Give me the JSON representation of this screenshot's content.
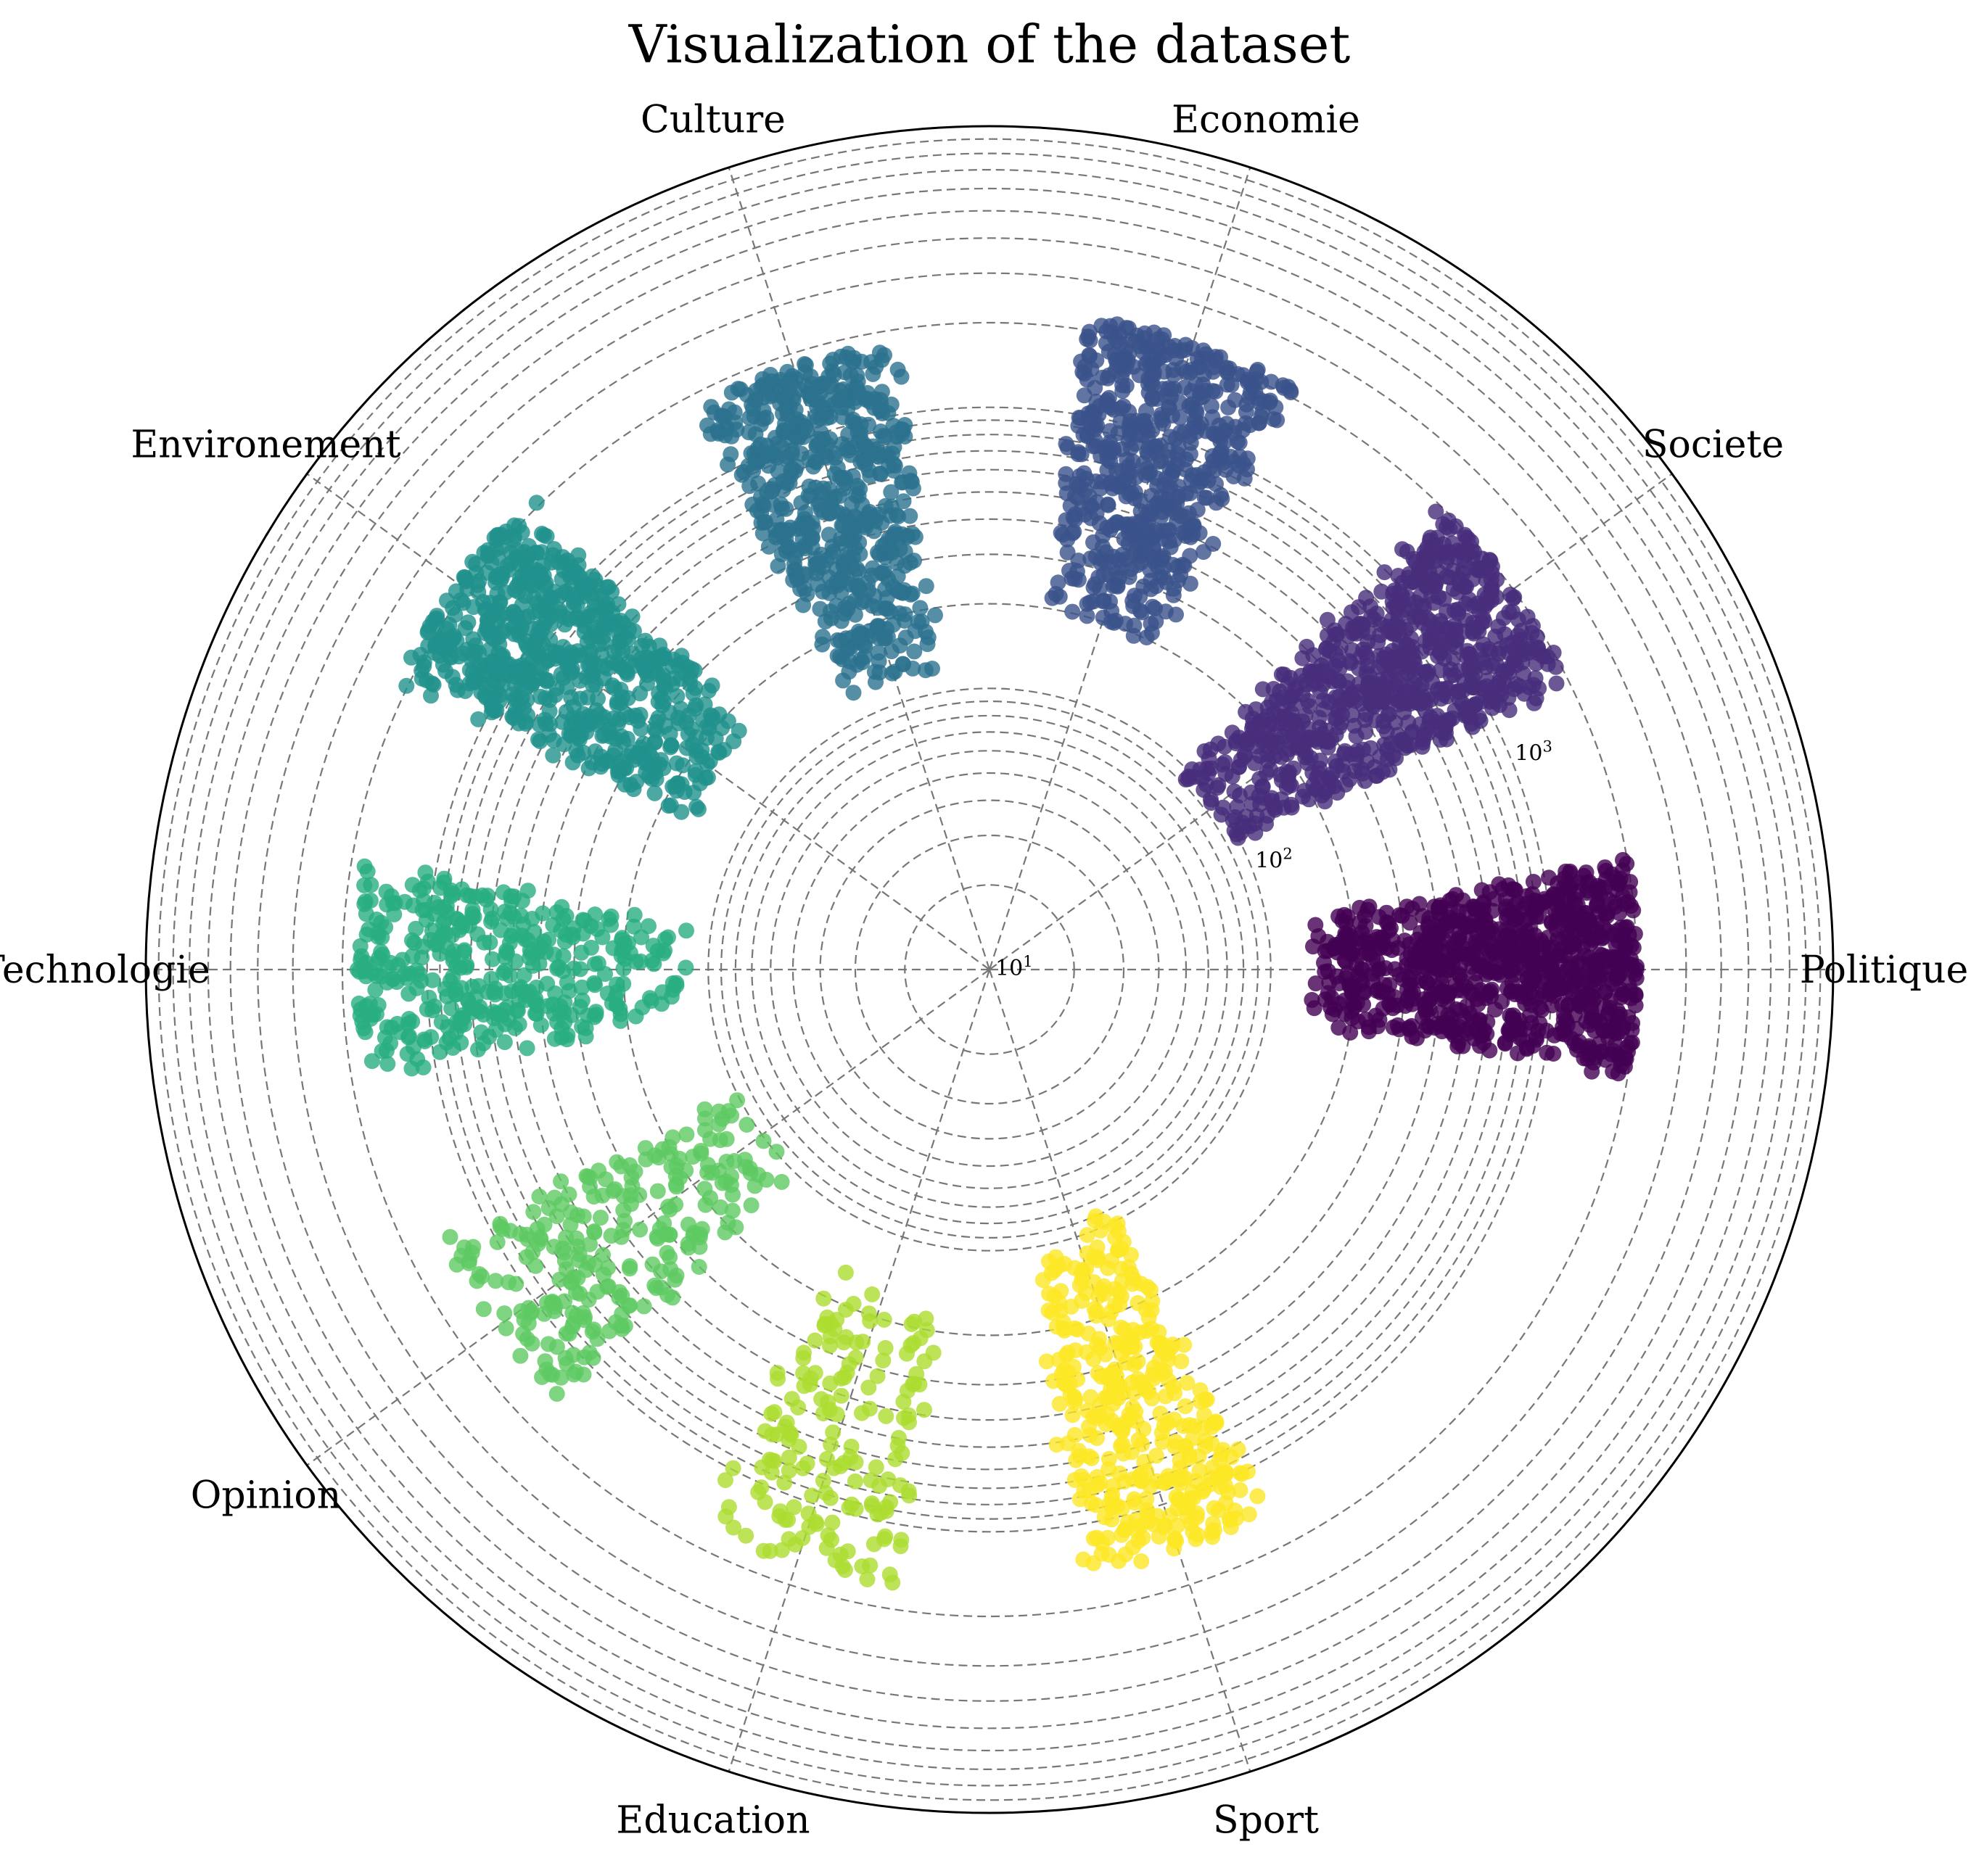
{
  "chart_data": {
    "type": "scatter",
    "projection": "polar",
    "title": "Visualization of the dataset",
    "radial_scale": "log",
    "radial_range": [
      10,
      10000
    ],
    "radial_ticks": [
      {
        "value": 10,
        "base": "10",
        "exp": "1"
      },
      {
        "value": 100,
        "base": "10",
        "exp": "2"
      },
      {
        "value": 1000,
        "base": "10",
        "exp": "3"
      }
    ],
    "grid": true,
    "colormap": "viridis",
    "point_alpha": 0.8,
    "categories": [
      {
        "name": "Politique",
        "angle_deg": 0,
        "color": "#440154",
        "spread_deg": 18,
        "r_range": [
          140,
          2000
        ],
        "n_points": 900,
        "seed": 11
      },
      {
        "name": "Societe",
        "angle_deg": 36,
        "color": "#472d7b",
        "spread_deg": 18,
        "r_range": [
          90,
          2000
        ],
        "n_points": 800,
        "seed": 12
      },
      {
        "name": "Economie",
        "angle_deg": 72,
        "color": "#3b528b",
        "spread_deg": 18,
        "r_range": [
          190,
          2200
        ],
        "n_points": 600,
        "seed": 13
      },
      {
        "name": "Culture",
        "angle_deg": 108,
        "color": "#2c728e",
        "spread_deg": 18,
        "r_range": [
          120,
          1800
        ],
        "n_points": 600,
        "seed": 14
      },
      {
        "name": "Environement",
        "angle_deg": 144,
        "color": "#21918c",
        "spread_deg": 18,
        "r_range": [
          150,
          2200
        ],
        "n_points": 700,
        "seed": 15
      },
      {
        "name": "Technologie",
        "angle_deg": 180,
        "color": "#28ae80",
        "spread_deg": 18,
        "r_range": [
          120,
          1800
        ],
        "n_points": 400,
        "seed": 16
      },
      {
        "name": "Opinion",
        "angle_deg": 216,
        "color": "#5ec962",
        "spread_deg": 18,
        "r_range": [
          90,
          1500
        ],
        "n_points": 260,
        "seed": 17
      },
      {
        "name": "Education",
        "angle_deg": 252,
        "color": "#addc30",
        "spread_deg": 18,
        "r_range": [
          150,
          1700
        ],
        "n_points": 170,
        "seed": 18
      },
      {
        "name": "Sport",
        "angle_deg": 288,
        "color": "#fde725",
        "spread_deg": 18,
        "r_range": [
          90,
          1500
        ],
        "n_points": 380,
        "seed": 19
      }
    ],
    "legend": "none"
  }
}
